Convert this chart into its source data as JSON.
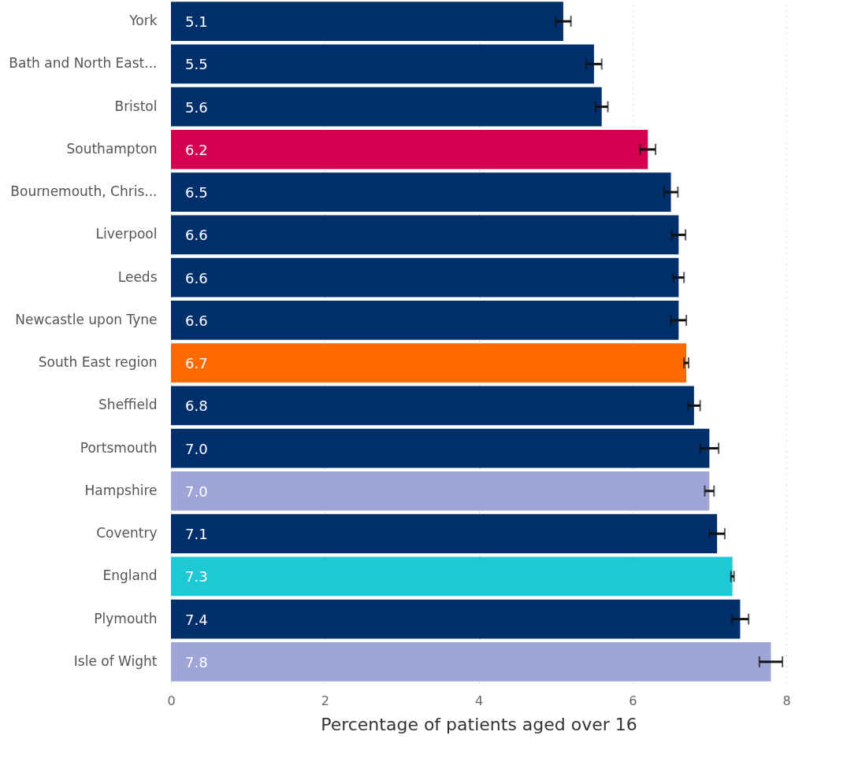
{
  "chart_data": {
    "type": "bar",
    "orientation": "horizontal",
    "xlabel": "Percentage of patients aged over 16",
    "categories": [
      "York",
      "Bath and North East...",
      "Bristol",
      "Southampton",
      "Bournemouth, Chris...",
      "Liverpool",
      "Leeds",
      "Newcastle upon Tyne",
      "South East region",
      "Sheffield",
      "Portsmouth",
      "Hampshire",
      "Coventry",
      "England",
      "Plymouth",
      "Isle of Wight"
    ],
    "values": [
      5.1,
      5.5,
      5.6,
      6.2,
      6.5,
      6.6,
      6.6,
      6.6,
      6.7,
      6.8,
      7.0,
      7.0,
      7.1,
      7.3,
      7.4,
      7.8
    ],
    "value_labels": [
      "5.1",
      "5.5",
      "5.6",
      "6.2",
      "6.5",
      "6.6",
      "6.6",
      "6.6",
      "6.7",
      "6.8",
      "7.0",
      "7.0",
      "7.1",
      "7.3",
      "7.4",
      "7.8"
    ],
    "errors": [
      0.1,
      0.1,
      0.08,
      0.1,
      0.09,
      0.09,
      0.07,
      0.1,
      0.03,
      0.08,
      0.12,
      0.06,
      0.1,
      0.02,
      0.11,
      0.15
    ],
    "colors": [
      "#002f6c",
      "#002f6c",
      "#002f6c",
      "#d40050",
      "#002f6c",
      "#002f6c",
      "#002f6c",
      "#002f6c",
      "#ff6a00",
      "#002f6c",
      "#002f6c",
      "#a0a5d8",
      "#002f6c",
      "#1ec8d4",
      "#002f6c",
      "#a0a5d8"
    ],
    "xlim": [
      0,
      8
    ],
    "xticks": [
      0,
      2,
      4,
      6,
      8
    ],
    "grid": "x"
  }
}
